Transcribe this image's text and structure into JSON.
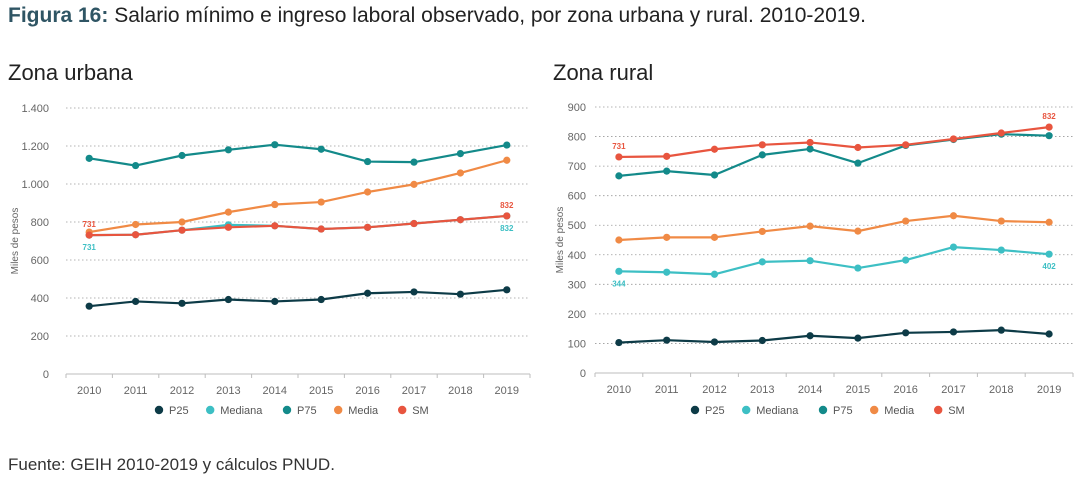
{
  "figure": {
    "title_bold": "Figura 16:",
    "title_rest": " Salario mínimo e ingreso laboral observado, por zona urbana y rural. 2010-2019.",
    "source": "Fuente: GEIH 2010-2019 y cálculos PNUD."
  },
  "colors": {
    "P25": "#0d3b47",
    "Mediana": "#3dbfc4",
    "P75": "#138a8a",
    "Media": "#f08a45",
    "SM": "#e8553f"
  },
  "chart_data": [
    {
      "type": "line",
      "title": "Zona urbana",
      "xlabel": "",
      "ylabel": "Miles de pesos",
      "ylim": [
        0,
        1400
      ],
      "yticks": [
        0,
        200,
        400,
        600,
        800,
        1000,
        1200,
        1400
      ],
      "ytick_labels": [
        "0",
        "200",
        "400",
        "600",
        "800",
        "1.000",
        "1.200",
        "1.400"
      ],
      "grid": true,
      "legend": "bottom",
      "categories": [
        "2010",
        "2011",
        "2012",
        "2013",
        "2014",
        "2015",
        "2016",
        "2017",
        "2018",
        "2019"
      ],
      "series": [
        {
          "name": "P25",
          "values": [
            357,
            382,
            372,
            392,
            382,
            392,
            425,
            432,
            420,
            443
          ]
        },
        {
          "name": "Mediana",
          "values": [
            731,
            733,
            757,
            785,
            780,
            763,
            772,
            792,
            812,
            832
          ]
        },
        {
          "name": "P75",
          "values": [
            1135,
            1097,
            1150,
            1180,
            1207,
            1183,
            1118,
            1115,
            1160,
            1205
          ]
        },
        {
          "name": "Media",
          "values": [
            747,
            787,
            800,
            852,
            892,
            905,
            958,
            998,
            1058,
            1125
          ]
        },
        {
          "name": "SM",
          "values": [
            731,
            733,
            757,
            772,
            780,
            763,
            772,
            792,
            812,
            832
          ]
        }
      ],
      "labels": [
        {
          "series": "SM",
          "index": 0,
          "text": "731",
          "pos": "above"
        },
        {
          "series": "Mediana",
          "index": 0,
          "text": "731",
          "pos": "below"
        },
        {
          "series": "SM",
          "index": 9,
          "text": "832",
          "pos": "above"
        },
        {
          "series": "Mediana",
          "index": 9,
          "text": "832",
          "pos": "below"
        }
      ]
    },
    {
      "type": "line",
      "title": "Zona rural",
      "xlabel": "",
      "ylabel": "Miles de pesos",
      "ylim": [
        0,
        900
      ],
      "yticks": [
        0,
        100,
        200,
        300,
        400,
        500,
        600,
        700,
        800,
        900
      ],
      "ytick_labels": [
        "0",
        "100",
        "200",
        "300",
        "400",
        "500",
        "600",
        "700",
        "800",
        "900"
      ],
      "grid": true,
      "legend": "bottom",
      "categories": [
        "2010",
        "2011",
        "2012",
        "2013",
        "2014",
        "2015",
        "2016",
        "2017",
        "2018",
        "2019"
      ],
      "series": [
        {
          "name": "P25",
          "values": [
            103,
            111,
            105,
            110,
            126,
            118,
            136,
            139,
            145,
            132
          ]
        },
        {
          "name": "Mediana",
          "values": [
            344,
            341,
            334,
            376,
            380,
            355,
            382,
            426,
            416,
            402
          ]
        },
        {
          "name": "P75",
          "values": [
            667,
            683,
            670,
            738,
            758,
            710,
            770,
            790,
            808,
            803
          ]
        },
        {
          "name": "Media",
          "values": [
            450,
            459,
            459,
            479,
            497,
            480,
            514,
            532,
            514,
            510
          ]
        },
        {
          "name": "SM",
          "values": [
            731,
            733,
            757,
            772,
            780,
            763,
            772,
            792,
            812,
            832
          ]
        }
      ],
      "labels": [
        {
          "series": "SM",
          "index": 0,
          "text": "731",
          "pos": "above"
        },
        {
          "series": "Mediana",
          "index": 0,
          "text": "344",
          "pos": "below"
        },
        {
          "series": "SM",
          "index": 9,
          "text": "832",
          "pos": "above"
        },
        {
          "series": "Mediana",
          "index": 9,
          "text": "402",
          "pos": "below"
        }
      ]
    }
  ]
}
